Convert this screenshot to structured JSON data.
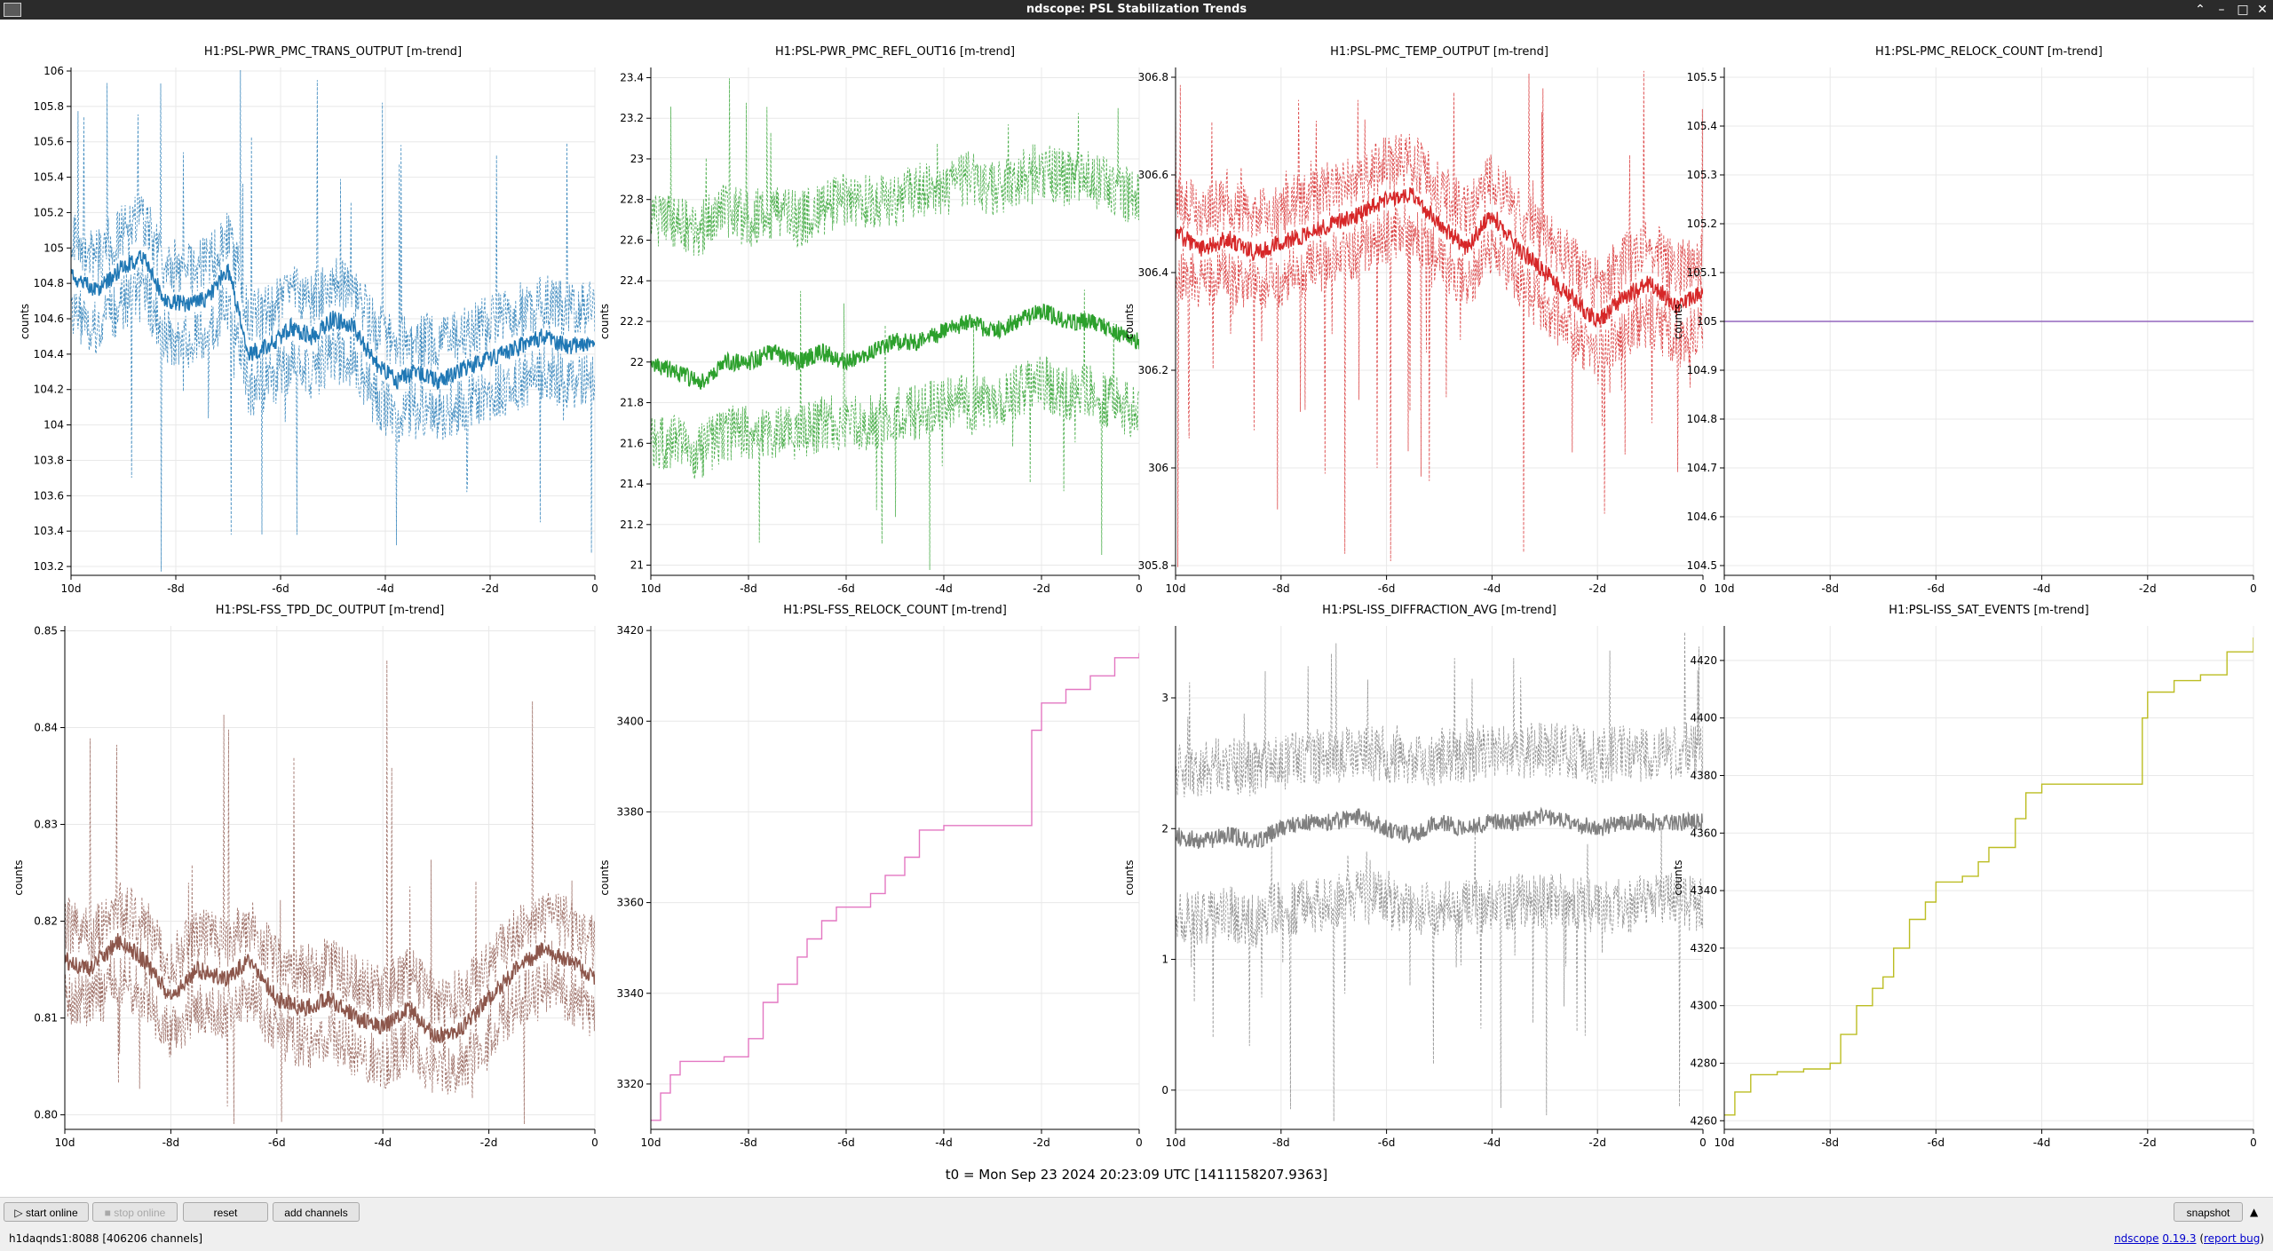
{
  "window": {
    "title": "ndscope: PSL Stabilization Trends",
    "controls": [
      "chevron-up-icon",
      "minimize-icon",
      "maximize-icon",
      "close-icon"
    ]
  },
  "plots": [
    {
      "title": "H1:PSL-PWR_PMC_TRANS_OUTPUT [m-trend]",
      "ylabel": "counts",
      "color": "#1f77b4",
      "yticks": [
        "106",
        "105.8",
        "105.6",
        "105.4",
        "105.2",
        "105",
        "104.8",
        "104.6",
        "104.4",
        "104.2",
        "104",
        "103.8",
        "103.6",
        "103.4",
        "103.2"
      ],
      "xticks": [
        "10d",
        "-8d",
        "-6d",
        "-4d",
        "-2d",
        "0"
      ]
    },
    {
      "title": "H1:PSL-PWR_PMC_REFL_OUT16 [m-trend]",
      "ylabel": "counts",
      "color": "#2ca02c",
      "yticks": [
        "23.4",
        "23.2",
        "23",
        "22.8",
        "22.6",
        "22.4",
        "22.2",
        "22",
        "21.8",
        "21.6",
        "21.4",
        "21.2",
        "21"
      ],
      "xticks": [
        "10d",
        "-8d",
        "-6d",
        "-4d",
        "-2d",
        "0"
      ]
    },
    {
      "title": "H1:PSL-PMC_TEMP_OUTPUT [m-trend]",
      "ylabel": "counts",
      "color": "#d62728",
      "yticks": [
        "306.8",
        "306.6",
        "306.4",
        "306.2",
        "306",
        "305.8"
      ],
      "xticks": [
        "10d",
        "-8d",
        "-6d",
        "-4d",
        "-2d",
        "0"
      ]
    },
    {
      "title": "H1:PSL-PMC_RELOCK_COUNT [m-trend]",
      "ylabel": "counts",
      "color": "#9467bd",
      "yticks": [
        "105.5",
        "105.4",
        "105.3",
        "105.2",
        "105.1",
        "105",
        "104.9",
        "104.8",
        "104.7",
        "104.6",
        "104.5"
      ],
      "xticks": [
        "10d",
        "-8d",
        "-6d",
        "-4d",
        "-2d",
        "0"
      ]
    },
    {
      "title": "H1:PSL-FSS_TPD_DC_OUTPUT [m-trend]",
      "ylabel": "counts",
      "color": "#8c564b",
      "yticks": [
        "0.85",
        "0.84",
        "0.83",
        "0.82",
        "0.81",
        "0.80"
      ],
      "xticks": [
        "10d",
        "-8d",
        "-6d",
        "-4d",
        "-2d",
        "0"
      ]
    },
    {
      "title": "H1:PSL-FSS_RELOCK_COUNT [m-trend]",
      "ylabel": "counts",
      "color": "#e377c2",
      "yticks": [
        "3420",
        "3400",
        "3380",
        "3360",
        "3340",
        "3320"
      ],
      "xticks": [
        "10d",
        "-8d",
        "-6d",
        "-4d",
        "-2d",
        "0"
      ]
    },
    {
      "title": "H1:PSL-ISS_DIFFRACTION_AVG [m-trend]",
      "ylabel": "counts",
      "color": "#7f7f7f",
      "yticks": [
        "3",
        "2",
        "1",
        "0"
      ],
      "xticks": [
        "10d",
        "-8d",
        "-6d",
        "-4d",
        "-2d",
        "0"
      ]
    },
    {
      "title": "H1:PSL-ISS_SAT_EVENTS [m-trend]",
      "ylabel": "counts",
      "color": "#bcbd22",
      "yticks": [
        "4420",
        "4400",
        "4380",
        "4360",
        "4340",
        "4320",
        "4300",
        "4280",
        "4260"
      ],
      "xticks": [
        "10d",
        "-8d",
        "-6d",
        "-4d",
        "-2d",
        "0"
      ]
    }
  ],
  "chart_data": [
    {
      "type": "line",
      "title": "H1:PSL-PWR_PMC_TRANS_OUTPUT [m-trend]",
      "ylabel": "counts",
      "xlabel": "",
      "ylim": [
        103.15,
        106.02
      ],
      "xlim": [
        -10,
        0
      ],
      "x_unit": "days",
      "grid": true,
      "series_style": "mean with dashed min/max envelope",
      "x": [
        -10,
        -9.5,
        -9,
        -8.6,
        -8.2,
        -7.8,
        -7.4,
        -7,
        -6.6,
        -6.2,
        -5.8,
        -5.4,
        -5,
        -4.6,
        -4.2,
        -3.8,
        -3.4,
        -3,
        -2.6,
        -2.2,
        -1.8,
        -1.4,
        -1,
        -0.6,
        -0.2,
        0
      ],
      "mean": [
        104.85,
        104.75,
        104.9,
        104.95,
        104.7,
        104.68,
        104.72,
        104.88,
        104.4,
        104.45,
        104.55,
        104.5,
        104.6,
        104.55,
        104.35,
        104.25,
        104.3,
        104.25,
        104.3,
        104.35,
        104.4,
        104.45,
        104.5,
        104.45,
        104.45,
        104.45
      ]
    },
    {
      "type": "line",
      "title": "H1:PSL-PWR_PMC_REFL_OUT16 [m-trend]",
      "ylabel": "counts",
      "xlabel": "",
      "ylim": [
        20.95,
        23.45
      ],
      "xlim": [
        -10,
        0
      ],
      "x_unit": "days",
      "grid": true,
      "series_style": "mean with dashed min/max envelope",
      "x": [
        -10,
        -9.5,
        -9,
        -8.5,
        -8,
        -7.5,
        -7,
        -6.5,
        -6,
        -5.5,
        -5,
        -4.5,
        -4,
        -3.5,
        -3,
        -2.5,
        -2,
        -1.5,
        -1,
        -0.5,
        0
      ],
      "mean": [
        22.0,
        21.95,
        21.9,
        22.0,
        22.0,
        22.05,
        22.0,
        22.05,
        22.0,
        22.05,
        22.1,
        22.1,
        22.15,
        22.2,
        22.15,
        22.2,
        22.25,
        22.2,
        22.2,
        22.15,
        22.1
      ],
      "min_band": [
        21.6,
        21.6,
        21.55,
        21.65,
        21.65,
        21.65,
        21.65,
        21.7,
        21.7,
        21.7,
        21.75,
        21.75,
        21.8,
        21.8,
        21.8,
        21.85,
        21.9,
        21.85,
        21.85,
        21.8,
        21.75
      ],
      "max_band": [
        22.7,
        22.7,
        22.65,
        22.75,
        22.7,
        22.75,
        22.7,
        22.75,
        22.8,
        22.8,
        22.8,
        22.85,
        22.85,
        22.9,
        22.85,
        22.9,
        22.95,
        22.9,
        22.9,
        22.85,
        22.8
      ]
    },
    {
      "type": "line",
      "title": "H1:PSL-PMC_TEMP_OUTPUT [m-trend]",
      "ylabel": "counts",
      "xlabel": "",
      "ylim": [
        305.78,
        306.82
      ],
      "xlim": [
        -10,
        0
      ],
      "x_unit": "days",
      "grid": true,
      "series_style": "mean with dashed min/max envelope",
      "x": [
        -10,
        -9.5,
        -9,
        -8.5,
        -8,
        -7.5,
        -7,
        -6.5,
        -6,
        -5.5,
        -5,
        -4.5,
        -4,
        -3.5,
        -3,
        -2.5,
        -2,
        -1.5,
        -1,
        -0.5,
        0
      ],
      "mean": [
        306.48,
        306.45,
        306.47,
        306.44,
        306.46,
        306.48,
        306.5,
        306.52,
        306.55,
        306.56,
        306.5,
        306.45,
        306.52,
        306.45,
        306.4,
        306.35,
        306.3,
        306.35,
        306.38,
        306.33,
        306.36
      ]
    },
    {
      "type": "line",
      "title": "H1:PSL-PMC_RELOCK_COUNT [m-trend]",
      "ylabel": "counts",
      "xlabel": "",
      "ylim": [
        104.48,
        105.52
      ],
      "xlim": [
        -10,
        0
      ],
      "x_unit": "days",
      "grid": true,
      "x": [
        -10,
        0
      ],
      "mean": [
        105,
        105
      ]
    },
    {
      "type": "line",
      "title": "H1:PSL-FSS_TPD_DC_OUTPUT [m-trend]",
      "ylabel": "counts",
      "xlabel": "",
      "ylim": [
        0.7985,
        0.8505
      ],
      "xlim": [
        -10,
        0
      ],
      "x_unit": "days",
      "grid": true,
      "series_style": "mean with dashed min/max envelope",
      "x": [
        -10,
        -9.5,
        -9,
        -8.5,
        -8,
        -7.5,
        -7,
        -6.5,
        -6,
        -5.5,
        -5,
        -4.5,
        -4,
        -3.5,
        -3,
        -2.5,
        -2,
        -1.5,
        -1,
        -0.5,
        0
      ],
      "mean": [
        0.816,
        0.815,
        0.818,
        0.816,
        0.812,
        0.815,
        0.814,
        0.816,
        0.812,
        0.811,
        0.812,
        0.81,
        0.809,
        0.811,
        0.808,
        0.809,
        0.812,
        0.815,
        0.817,
        0.816,
        0.814
      ]
    },
    {
      "type": "line",
      "title": "H1:PSL-FSS_RELOCK_COUNT [m-trend]",
      "ylabel": "counts",
      "xlabel": "",
      "ylim": [
        3310,
        3421
      ],
      "xlim": [
        -10,
        0
      ],
      "x_unit": "days",
      "grid": true,
      "series_style": "step",
      "x": [
        -10,
        -9.8,
        -9.6,
        -9.4,
        -9,
        -8.5,
        -8.2,
        -8,
        -7.7,
        -7.4,
        -7,
        -6.8,
        -6.5,
        -6.2,
        -5.8,
        -5.5,
        -5.2,
        -4.8,
        -4.5,
        -4,
        -3.5,
        -2.3,
        -2.2,
        -2,
        -1.5,
        -1,
        -0.5,
        0
      ],
      "values": [
        3312,
        3318,
        3322,
        3325,
        3325,
        3326,
        3326,
        3330,
        3338,
        3342,
        3348,
        3352,
        3356,
        3359,
        3359,
        3362,
        3366,
        3370,
        3376,
        3377,
        3377,
        3377,
        3398,
        3404,
        3407,
        3410,
        3414,
        3415
      ]
    },
    {
      "type": "line",
      "title": "H1:PSL-ISS_DIFFRACTION_AVG [m-trend]",
      "ylabel": "counts",
      "xlabel": "",
      "ylim": [
        -0.3,
        3.55
      ],
      "xlim": [
        -10,
        0
      ],
      "x_unit": "days",
      "grid": true,
      "series_style": "mean with dashed min/max envelope",
      "x": [
        -10,
        -9.5,
        -9,
        -8.5,
        -8,
        -7.5,
        -7,
        -6.5,
        -6,
        -5.5,
        -5,
        -4.5,
        -4,
        -3.5,
        -3,
        -2.5,
        -2,
        -1.5,
        -1,
        -0.5,
        0
      ],
      "mean": [
        1.95,
        1.9,
        1.95,
        1.9,
        2.0,
        2.05,
        2.05,
        2.1,
        2.0,
        1.95,
        2.05,
        2.0,
        2.05,
        2.05,
        2.1,
        2.05,
        2.0,
        2.05,
        2.05,
        2.05,
        2.05
      ],
      "min_band": [
        1.35,
        1.3,
        1.35,
        1.3,
        1.4,
        1.4,
        1.45,
        1.5,
        1.45,
        1.35,
        1.4,
        1.4,
        1.4,
        1.45,
        1.45,
        1.45,
        1.4,
        1.4,
        1.45,
        1.45,
        1.4
      ],
      "max_band": [
        2.45,
        2.45,
        2.5,
        2.45,
        2.5,
        2.55,
        2.55,
        2.6,
        2.55,
        2.5,
        2.55,
        2.55,
        2.6,
        2.6,
        2.6,
        2.6,
        2.55,
        2.6,
        2.55,
        2.6,
        2.6
      ]
    },
    {
      "type": "line",
      "title": "H1:PSL-ISS_SAT_EVENTS [m-trend]",
      "ylabel": "counts",
      "xlabel": "",
      "ylim": [
        4257,
        4432
      ],
      "xlim": [
        -10,
        0
      ],
      "x_unit": "days",
      "grid": true,
      "series_style": "step",
      "x": [
        -10,
        -9.8,
        -9.5,
        -9,
        -8.5,
        -8,
        -7.8,
        -7.5,
        -7.2,
        -7,
        -6.8,
        -6.5,
        -6.2,
        -6,
        -5.5,
        -5.2,
        -5,
        -4.5,
        -4.3,
        -4,
        -3.5,
        -2.3,
        -2.1,
        -2,
        -1.5,
        -1,
        -0.5,
        0
      ],
      "values": [
        4262,
        4270,
        4276,
        4277,
        4278,
        4280,
        4290,
        4300,
        4306,
        4310,
        4320,
        4330,
        4336,
        4343,
        4345,
        4350,
        4355,
        4365,
        4374,
        4377,
        4377,
        4377,
        4400,
        4409,
        4413,
        4415,
        4423,
        4428
      ]
    }
  ],
  "footer": {
    "t0": "t0 = Mon Sep 23 2024 20:23:09 UTC [1411158207.9363]"
  },
  "toolbar": {
    "start_online": "start online",
    "stop_online": "stop online",
    "reset": "reset",
    "add_channels": "add channels",
    "snapshot": "snapshot"
  },
  "status": {
    "server": "h1daqnds1:8088",
    "channels": "[406206 channels]",
    "app": "ndscope",
    "version": "0.19.3",
    "report": "report bug"
  }
}
